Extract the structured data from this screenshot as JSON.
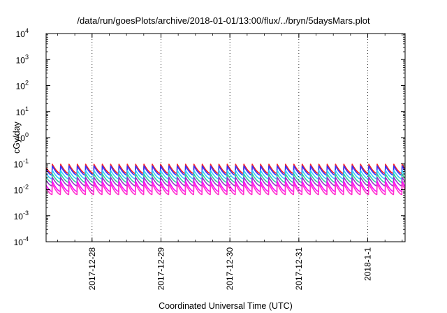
{
  "chart_data": {
    "type": "line",
    "title": "/data/run/goesPlots/archive/2018-01-01/13:00/flux/../bryn/5daysMars.plot",
    "xlabel": "Coordinated Universal Time (UTC)",
    "ylabel": "cGy/day",
    "yscale": "log",
    "ylim": [
      0.0001,
      10000
    ],
    "xlim": [
      "2017-12-27 08:00",
      "2018-01-01 13:00"
    ],
    "grid": false,
    "legend": "none",
    "y_ticks": [
      {
        "base": "10",
        "exp": "4"
      },
      {
        "base": "10",
        "exp": "3"
      },
      {
        "base": "10",
        "exp": "2"
      },
      {
        "base": "10",
        "exp": "1"
      },
      {
        "base": "10",
        "exp": "0"
      },
      {
        "base": "10",
        "exp": "-1"
      },
      {
        "base": "10",
        "exp": "-2"
      },
      {
        "base": "10",
        "exp": "-3"
      },
      {
        "base": "10",
        "exp": "-4"
      }
    ],
    "x_ticks": [
      "2017-12-28",
      "2017-12-29",
      "2017-12-30",
      "2017-12-31",
      "2018-1-1"
    ],
    "sawtooth_period_hours": 2.9,
    "series": [
      {
        "color": "#ff2020",
        "peak": 0.095,
        "trough": 0.042
      },
      {
        "color": "#3333ff",
        "peak": 0.082,
        "trough": 0.036
      },
      {
        "color": "#33ccff",
        "peak": 0.055,
        "trough": 0.026
      },
      {
        "color": "#33cc99",
        "peak": 0.04,
        "trough": 0.019
      },
      {
        "color": "#9933cc",
        "peak": 0.03,
        "trough": 0.014
      },
      {
        "color": "#ff00ff",
        "peak": 0.021,
        "trough": 0.0085
      },
      {
        "color": "#ff33cc",
        "peak": 0.017,
        "trough": 0.0065
      }
    ]
  }
}
